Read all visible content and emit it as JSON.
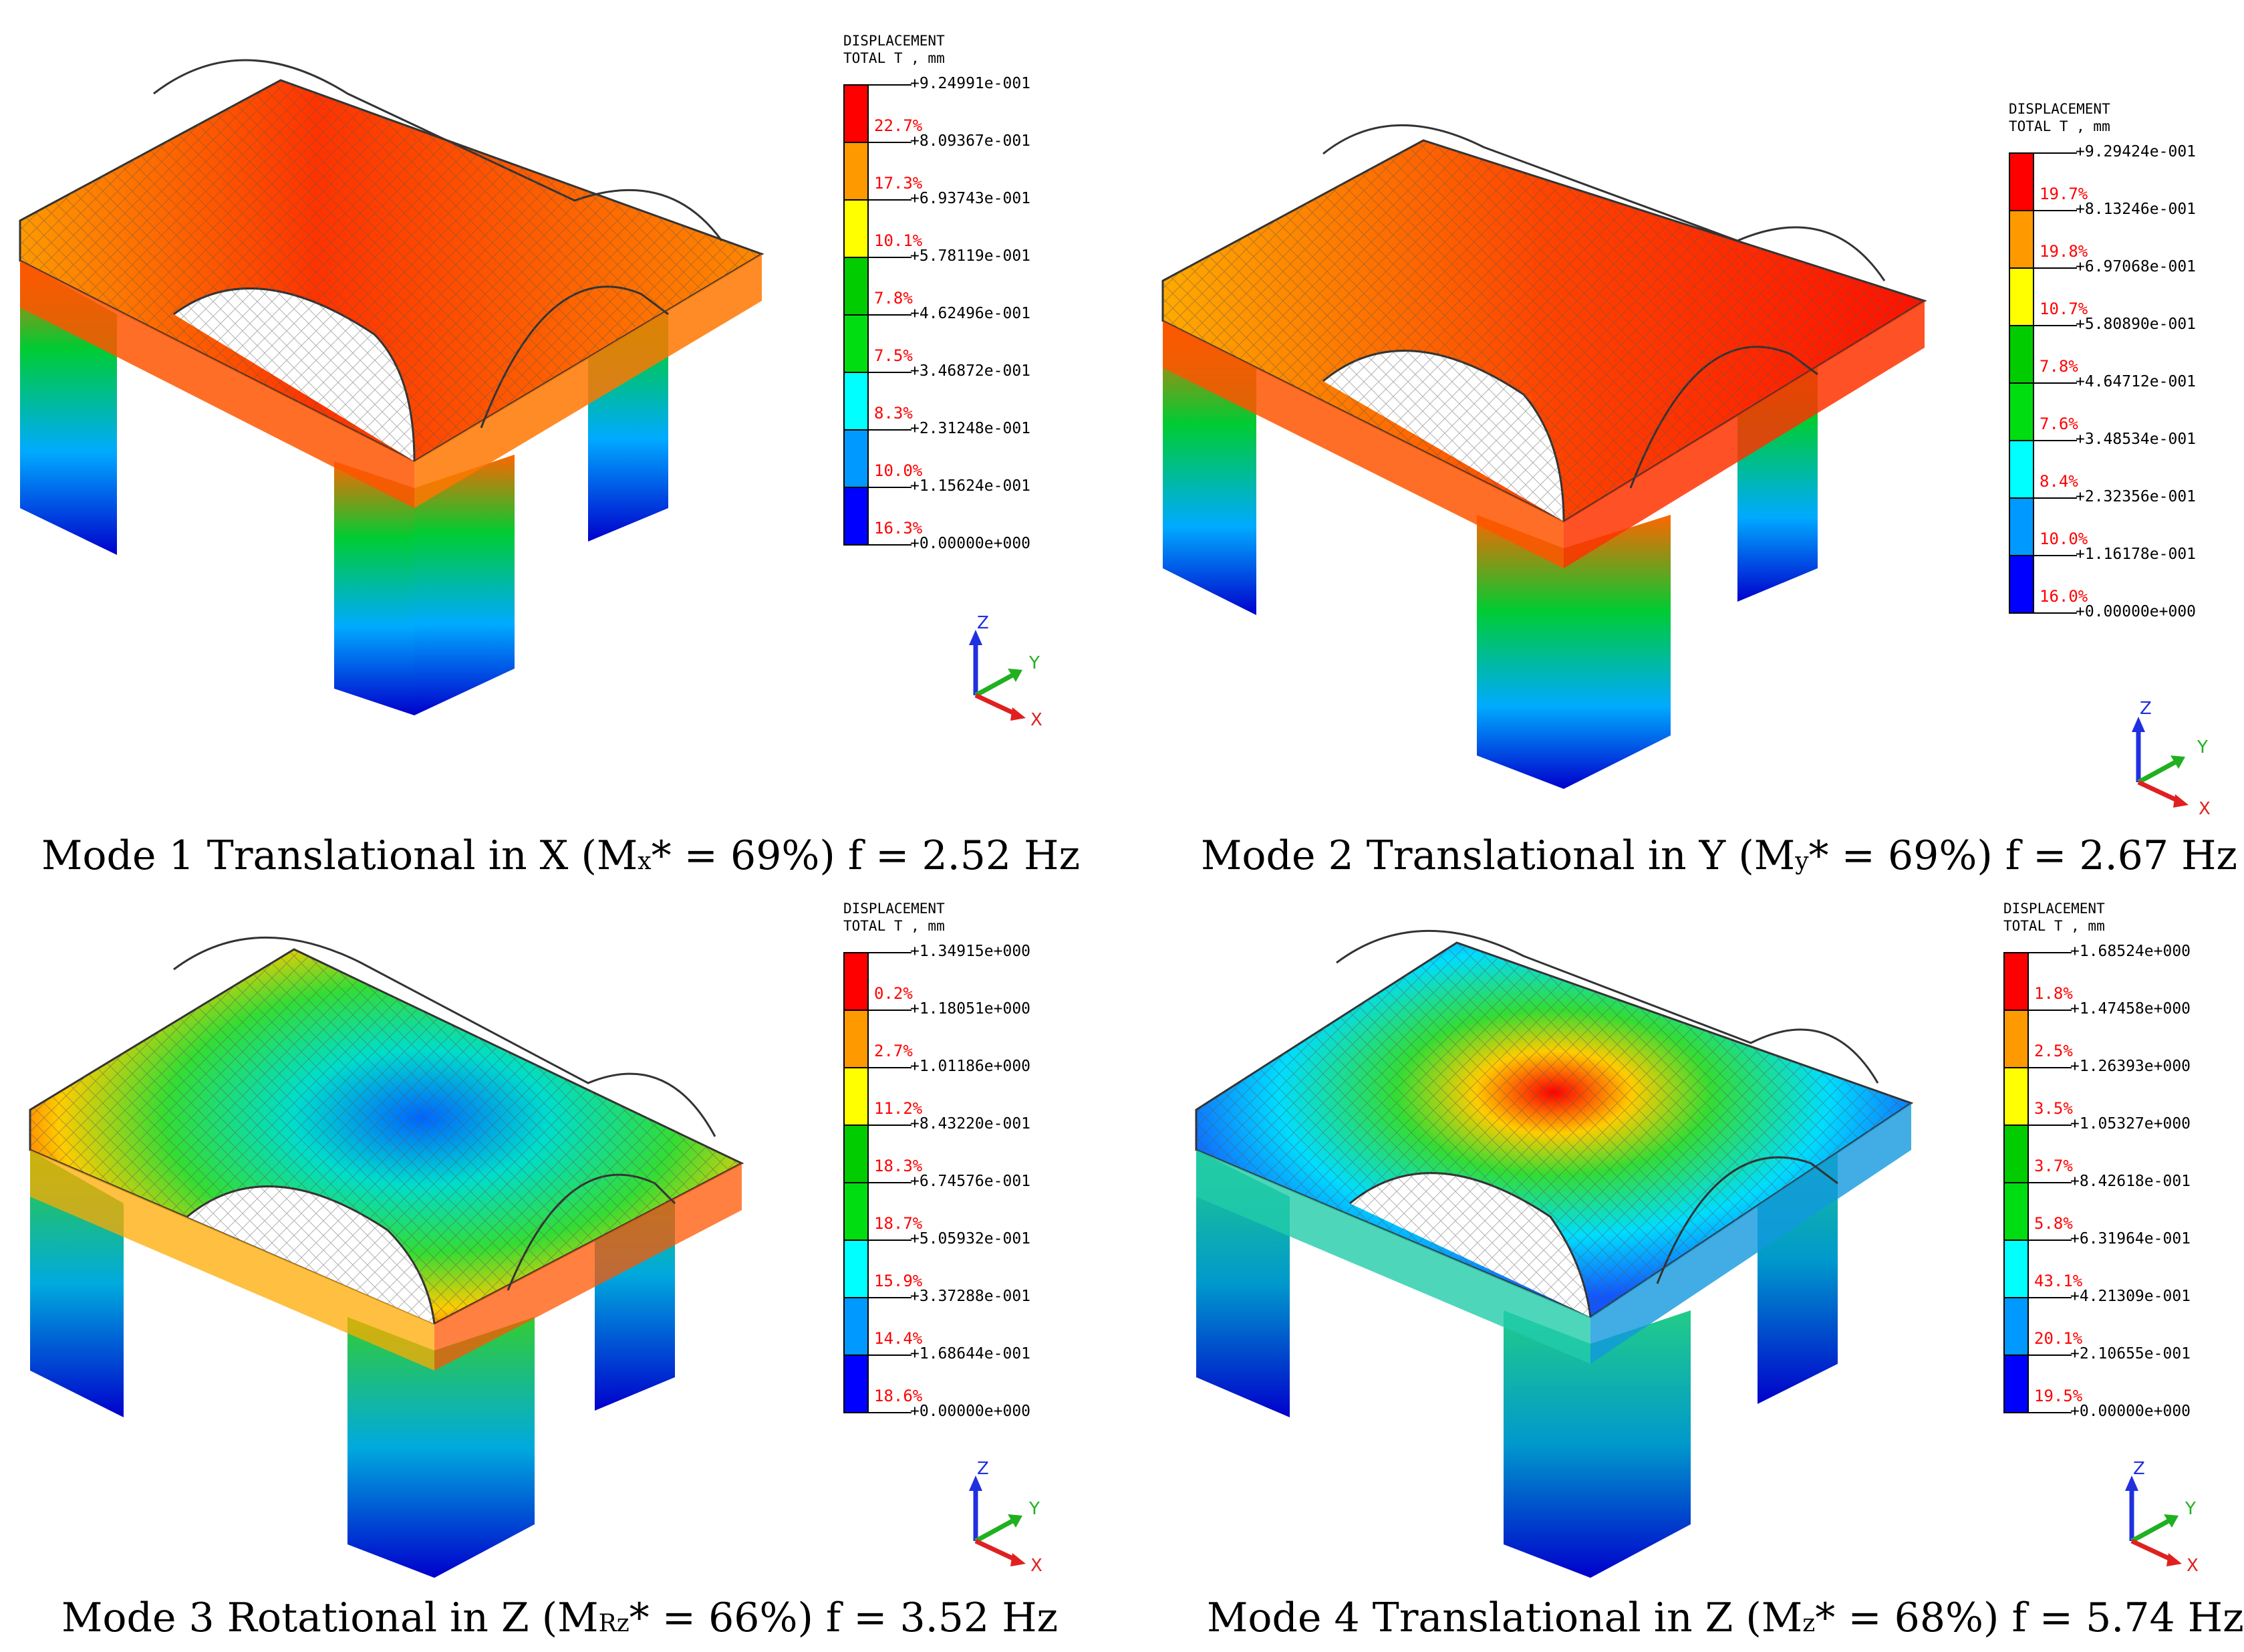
{
  "legend_header": {
    "line1": "DISPLACEMENT",
    "line2": "TOTAL T , mm"
  },
  "band_colors": [
    "#ff0000",
    "#ff9900",
    "#ffff00",
    "#00cc00",
    "#00dd11",
    "#00ffff",
    "#0099ff",
    "#0000ff"
  ],
  "axis_labels": {
    "x": "X",
    "y": "Y",
    "z": "Z"
  },
  "axis_colors": {
    "x": "#e02020",
    "y": "#20b020",
    "z": "#2030e0"
  },
  "modes": [
    {
      "values": [
        "+9.24991e-001",
        "+8.09367e-001",
        "+6.93743e-001",
        "+5.78119e-001",
        "+4.62496e-001",
        "+3.46872e-001",
        "+2.31248e-001",
        "+1.15624e-001",
        "+0.00000e+000"
      ],
      "percents": [
        "22.7%",
        "17.3%",
        "10.1%",
        "7.8%",
        "7.5%",
        "8.3%",
        "10.0%",
        "16.3%"
      ],
      "caption": {
        "pre": "Mode 1 Translational in X (M",
        "sub": "x",
        "post": "* = 69%) f = 2.52 Hz"
      }
    },
    {
      "values": [
        "+9.29424e-001",
        "+8.13246e-001",
        "+6.97068e-001",
        "+5.80890e-001",
        "+4.64712e-001",
        "+3.48534e-001",
        "+2.32356e-001",
        "+1.16178e-001",
        "+0.00000e+000"
      ],
      "percents": [
        "19.7%",
        "19.8%",
        "10.7%",
        "7.8%",
        "7.6%",
        "8.4%",
        "10.0%",
        "16.0%"
      ],
      "caption": {
        "pre": "Mode 2 Translational in Y (M",
        "sub": "y",
        "post": "* = 69%) f = 2.67 Hz"
      }
    },
    {
      "values": [
        "+1.34915e+000",
        "+1.18051e+000",
        "+1.01186e+000",
        "+8.43220e-001",
        "+6.74576e-001",
        "+5.05932e-001",
        "+3.37288e-001",
        "+1.68644e-001",
        "+0.00000e+000"
      ],
      "percents": [
        "0.2%",
        "2.7%",
        "11.2%",
        "18.3%",
        "18.7%",
        "15.9%",
        "14.4%",
        "18.6%"
      ],
      "caption": {
        "pre": "Mode 3 Rotational in Z (M",
        "sub": "Rz",
        "post": "* = 66%) f = 3.52 Hz"
      }
    },
    {
      "values": [
        "+1.68524e+000",
        "+1.47458e+000",
        "+1.26393e+000",
        "+1.05327e+000",
        "+8.42618e-001",
        "+6.31964e-001",
        "+4.21309e-001",
        "+2.10655e-001",
        "+0.00000e+000"
      ],
      "percents": [
        "1.8%",
        "2.5%",
        "3.5%",
        "3.7%",
        "5.8%",
        "43.1%",
        "20.1%",
        "19.5%"
      ],
      "caption": {
        "pre": "Mode 4 Translational in Z (M",
        "sub": "z",
        "post": "* = 68%) f = 5.74 Hz"
      }
    }
  ]
}
